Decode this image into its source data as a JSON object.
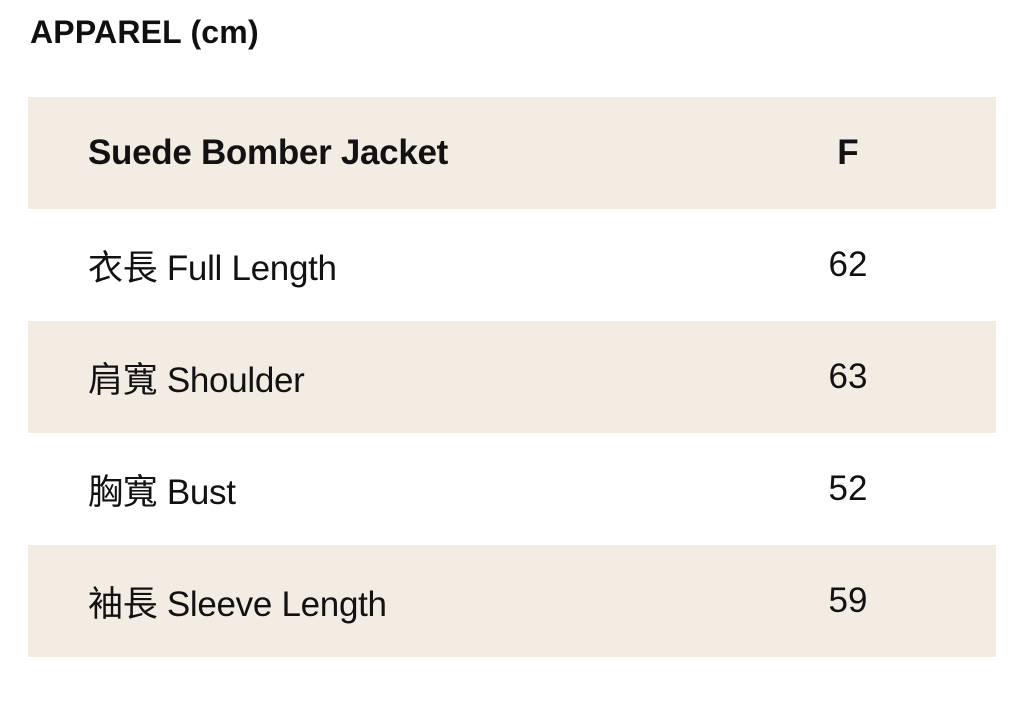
{
  "page": {
    "title": "APPAREL (cm)"
  },
  "table": {
    "header": {
      "label": "Suede Bomber Jacket",
      "value": "F"
    },
    "rows": [
      {
        "label": "衣長 Full Length",
        "value": "62"
      },
      {
        "label": "肩寬 Shoulder",
        "value": "63"
      },
      {
        "label": "胸寬 Bust",
        "value": "52"
      },
      {
        "label": "袖長 Sleeve Length",
        "value": "59"
      }
    ]
  },
  "colors": {
    "stripe": "#f2ece3",
    "row_alt": "#ffffff",
    "text": "#121212",
    "background": "#ffffff"
  }
}
